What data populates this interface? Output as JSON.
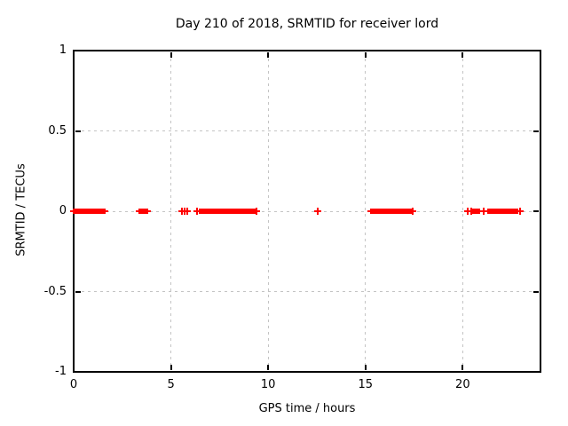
{
  "chart_data": {
    "type": "scatter",
    "title": "Day 210 of 2018, SRMTID for receiver lord",
    "xlabel": "GPS time / hours",
    "ylabel": "SRMTID / TECUs",
    "xlim": [
      0,
      24
    ],
    "ylim": [
      -1,
      1
    ],
    "xticks": [
      0,
      5,
      10,
      15,
      20
    ],
    "xtick_labels": [
      "0",
      "5",
      "10",
      "15",
      "20"
    ],
    "yticks": [
      -1,
      -0.5,
      0,
      0.5,
      1
    ],
    "ytick_labels": [
      "-1",
      "-0.5",
      "0",
      "0.5",
      "1"
    ],
    "grid": true,
    "legend_position": "none",
    "marker": "plus",
    "marker_color": "#ff0000",
    "grid_color": "#c4c4c4",
    "axis_color": "#000000",
    "series_y_value": 0,
    "dense_segments_hours": [
      [
        0.0,
        1.58
      ],
      [
        3.38,
        3.8
      ],
      [
        6.47,
        9.32
      ],
      [
        15.3,
        17.32
      ],
      [
        20.52,
        20.85
      ],
      [
        21.33,
        22.82
      ]
    ],
    "sparse_points_hours": [
      5.55,
      5.7,
      5.84,
      6.32,
      9.42,
      12.55,
      17.42,
      20.25,
      20.45,
      21.1,
      22.95
    ]
  }
}
